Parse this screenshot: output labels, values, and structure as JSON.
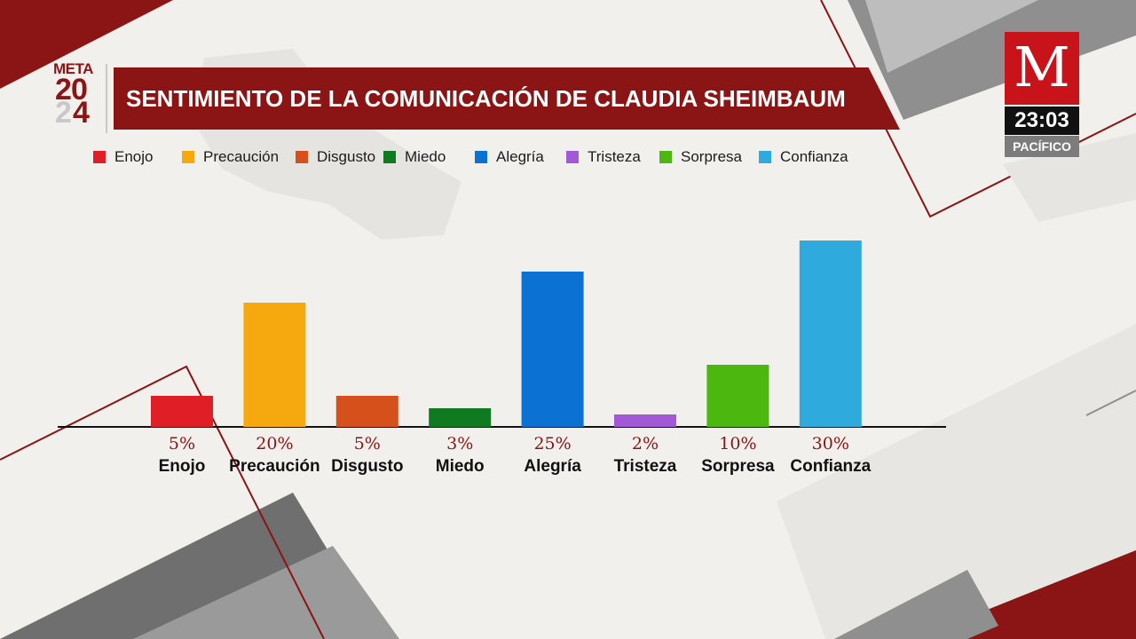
{
  "header": {
    "title": "SENTIMIENTO DE LA COMUNICACIÓN DE CLAUDIA SHEIMBAUM"
  },
  "event_logo": {
    "word": "META",
    "digits": [
      "2",
      "0",
      "2",
      "4"
    ]
  },
  "broadcaster": {
    "logo_letter": "M",
    "time": "23:03",
    "timezone": "PACÍFICO"
  },
  "colors": {
    "accent": "#8b1414",
    "brand_red": "#c8131b"
  },
  "legend": [
    {
      "label": "Enojo",
      "color": "#e01e26"
    },
    {
      "label": "Precaución",
      "color": "#f6a90e"
    },
    {
      "label": "Disgusto",
      "color": "#d6501b"
    },
    {
      "label": "Miedo",
      "color": "#0f7a1f"
    },
    {
      "label": "Alegría",
      "color": "#0b72d4"
    },
    {
      "label": "Tristeza",
      "color": "#a259d6"
    },
    {
      "label": "Sorpresa",
      "color": "#4cb70f"
    },
    {
      "label": "Confianza",
      "color": "#2eabdc"
    }
  ],
  "chart_data": {
    "type": "bar",
    "title": "SENTIMIENTO DE LA COMUNICACIÓN DE CLAUDIA SHEIMBAUM",
    "categories": [
      "Enojo",
      "Precaución",
      "Disgusto",
      "Miedo",
      "Alegría",
      "Tristeza",
      "Sorpresa",
      "Confianza"
    ],
    "values": [
      5,
      20,
      5,
      3,
      25,
      2,
      10,
      30
    ],
    "value_labels": [
      "5%",
      "20%",
      "5%",
      "3%",
      "25%",
      "2%",
      "10%",
      "30%"
    ],
    "colors": [
      "#e01e26",
      "#f6a90e",
      "#d6501b",
      "#0f7a1f",
      "#0b72d4",
      "#a259d6",
      "#4cb70f",
      "#2eabdc"
    ],
    "unit": "%",
    "ylim": [
      0,
      30
    ],
    "grid": false,
    "legend_position": "top"
  }
}
